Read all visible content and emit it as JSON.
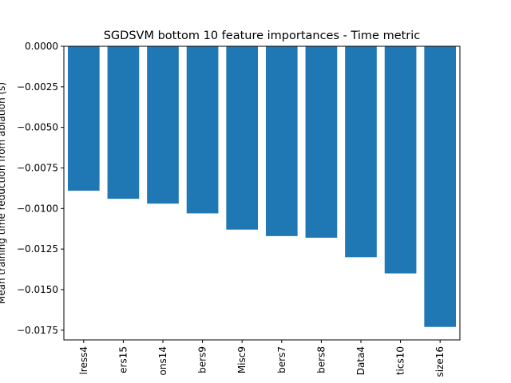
{
  "chart_data": {
    "type": "bar",
    "title": "SGDSVM bottom 10 feature importances - Time metric",
    "xlabel": "",
    "ylabel": "Mean training time reduction from ablation (s)",
    "categories": [
      "lress4",
      "ers15",
      "ons14",
      "bers9",
      "Misc9",
      "bers7",
      "bers8",
      "Data4",
      "tics10",
      "size16"
    ],
    "values": [
      -0.0089,
      -0.0094,
      -0.0097,
      -0.0103,
      -0.0113,
      -0.0117,
      -0.0118,
      -0.013,
      -0.014,
      -0.0173
    ],
    "ylim": [
      -0.0181,
      0.0
    ],
    "yticks": [
      0.0,
      -0.0025,
      -0.005,
      -0.0075,
      -0.01,
      -0.0125,
      -0.015,
      -0.0175
    ],
    "ytick_labels": [
      "0.0000",
      "−0.0025",
      "−0.0050",
      "−0.0075",
      "−0.0100",
      "−0.0125",
      "−0.0150",
      "−0.0175"
    ],
    "bar_color": "#1f77b4",
    "grid": false,
    "legend": "none"
  }
}
